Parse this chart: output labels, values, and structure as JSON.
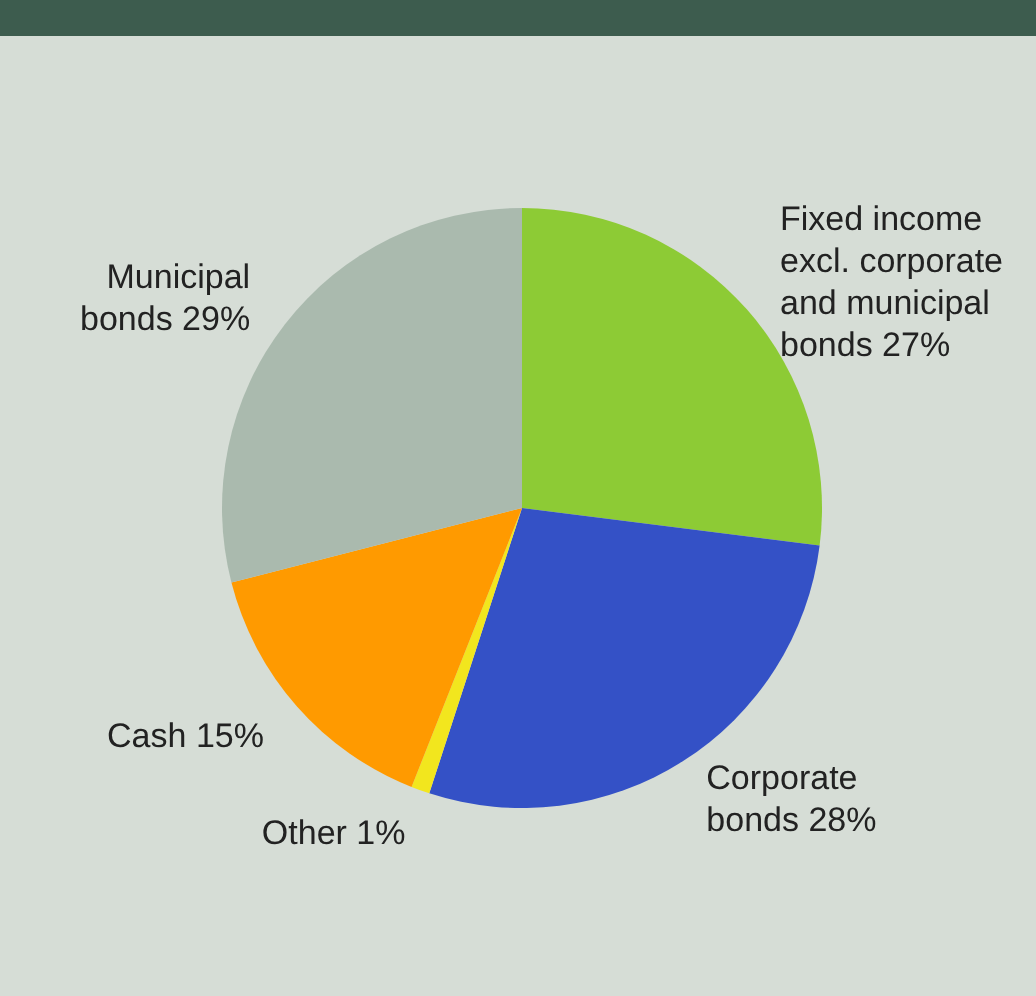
{
  "chart_data": {
    "type": "pie",
    "categories": [
      "Fixed income excl. corporate and municipal bonds",
      "Corporate bonds",
      "Other",
      "Cash",
      "Municipal bonds"
    ],
    "values": [
      27,
      28,
      1,
      15,
      29
    ],
    "value_labels": [
      "27%",
      "28%",
      "1%",
      "15%",
      "29%"
    ],
    "colors": [
      "#8dcb35",
      "#3451c6",
      "#f2e61e",
      "#ff9a00",
      "#aabaae"
    ]
  }
}
